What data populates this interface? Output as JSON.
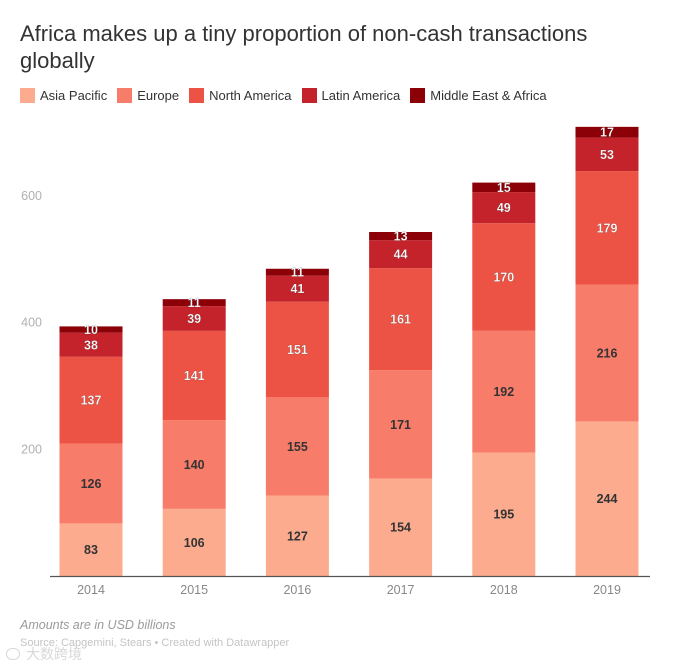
{
  "chart_data": {
    "type": "bar",
    "stacked": true,
    "title": "Africa makes up a tiny proportion of non-cash transactions globally",
    "categories": [
      "2014",
      "2015",
      "2016",
      "2017",
      "2018",
      "2019"
    ],
    "series": [
      {
        "name": "Asia Pacific",
        "color": "#fcab8e",
        "values": [
          83,
          106,
          127,
          154,
          195,
          244
        ]
      },
      {
        "name": "Europe",
        "color": "#f87c6a",
        "values": [
          126,
          140,
          155,
          171,
          192,
          216
        ]
      },
      {
        "name": "North America",
        "color": "#ec5344",
        "values": [
          137,
          141,
          151,
          161,
          170,
          179
        ]
      },
      {
        "name": "Latin America",
        "color": "#c4232b",
        "values": [
          38,
          39,
          41,
          44,
          49,
          53
        ]
      },
      {
        "name": "Middle East & Africa",
        "color": "#8c0008",
        "values": [
          10,
          11,
          11,
          13,
          15,
          17
        ]
      }
    ],
    "y_ticks": [
      200,
      400,
      600
    ],
    "ylim": [
      0,
      700
    ],
    "legend_position": "top-left",
    "grid": false
  },
  "footer": {
    "note": "Amounts are in USD billions",
    "source": "Source: Capgemini, Stears • Created with Datawrapper",
    "watermark": "大数跨境"
  }
}
